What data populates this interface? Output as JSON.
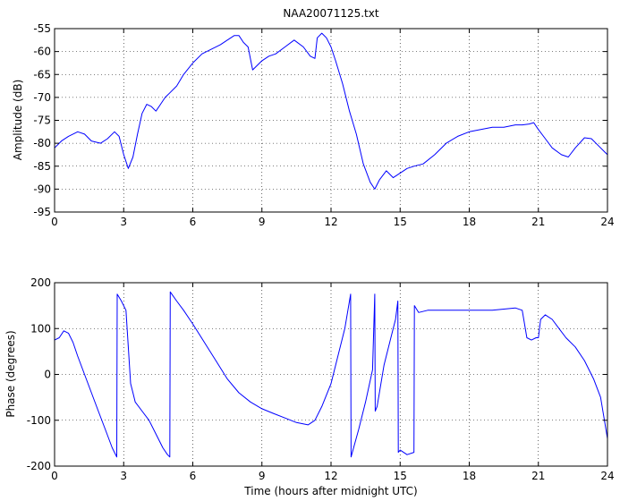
{
  "chart_data": [
    {
      "type": "line",
      "title": "NAA20071125.txt",
      "xlabel": "",
      "ylabel": "Amplitude (dB)",
      "xlim": [
        0,
        24
      ],
      "ylim": [
        -95,
        -55
      ],
      "xticks": [
        0,
        3,
        6,
        9,
        12,
        15,
        18,
        21,
        24
      ],
      "yticks": [
        -95,
        -90,
        -85,
        -80,
        -75,
        -70,
        -65,
        -60,
        -55
      ],
      "grid": "dotted",
      "color": "#0000ff",
      "series": [
        {
          "x": [
            0,
            0.3,
            0.6,
            1.0,
            1.3,
            1.6,
            2.0,
            2.3,
            2.6,
            2.8,
            3.0,
            3.2,
            3.4,
            3.6,
            3.8,
            4.0,
            4.2,
            4.4,
            4.6,
            4.8,
            5.0,
            5.3,
            5.6,
            6.0,
            6.4,
            6.8,
            7.2,
            7.5,
            7.8,
            8.0,
            8.2,
            8.4,
            8.6,
            8.8,
            9.0,
            9.3,
            9.6,
            10.0,
            10.4,
            10.8,
            11.1,
            11.3,
            11.4,
            11.6,
            11.8,
            12.0,
            12.2,
            12.5,
            12.8,
            13.1,
            13.4,
            13.7,
            13.9,
            14.1,
            14.4,
            14.7,
            15.0,
            15.3,
            15.6,
            16.0,
            16.5,
            17.0,
            17.5,
            18.0,
            18.5,
            19.0,
            19.5,
            20.0,
            20.3,
            20.6,
            20.8,
            21.0,
            21.3,
            21.6,
            22.0,
            22.3,
            22.6,
            23.0,
            23.3,
            23.6,
            23.9,
            24.0
          ],
          "y": [
            -81,
            -79.5,
            -78.5,
            -77.5,
            -78,
            -79.5,
            -80,
            -79,
            -77.5,
            -78.5,
            -82.5,
            -85.5,
            -83,
            -78,
            -73.5,
            -71.5,
            -72,
            -73,
            -71.5,
            -70,
            -69,
            -67.5,
            -65,
            -62.5,
            -60.5,
            -59.5,
            -58.5,
            -57.5,
            -56.5,
            -56.5,
            -58,
            -59,
            -64,
            -63,
            -62,
            -61,
            -60.5,
            -59,
            -57.5,
            -59,
            -61,
            -61.5,
            -57,
            -56,
            -57,
            -59,
            -62,
            -67,
            -73,
            -78,
            -84.5,
            -88.5,
            -90,
            -88,
            -86,
            -87.5,
            -86.5,
            -85.5,
            -85,
            -84.5,
            -82.5,
            -80,
            -78.5,
            -77.5,
            -77,
            -76.5,
            -76.5,
            -76,
            -76,
            -75.8,
            -75.5,
            -77,
            -79,
            -81,
            -82.5,
            -83,
            -81,
            -78.8,
            -79,
            -80.5,
            -82,
            -82.5
          ]
        }
      ]
    },
    {
      "type": "line",
      "title": "",
      "xlabel": "Time (hours after midnight UTC)",
      "ylabel": "Phase (degrees)",
      "xlim": [
        0,
        24
      ],
      "ylim": [
        -200,
        200
      ],
      "xticks": [
        0,
        3,
        6,
        9,
        12,
        15,
        18,
        21,
        24
      ],
      "yticks": [
        -200,
        -100,
        0,
        100,
        200
      ],
      "grid": "dotted",
      "color": "#0000ff",
      "series": [
        {
          "x": [
            0,
            0.2,
            0.4,
            0.6,
            0.8,
            1.0,
            1.3,
            1.6,
            1.9,
            2.2,
            2.5,
            2.7,
            2.72,
            2.9,
            3.1,
            3.2,
            3.3,
            3.4,
            3.5,
            3.8,
            4.1,
            4.4,
            4.7,
            4.9,
            5.0,
            5.02,
            5.3,
            5.6,
            6.0,
            6.5,
            7.0,
            7.5,
            8.0,
            8.5,
            9.0,
            9.5,
            10.0,
            10.5,
            11.0,
            11.3,
            11.6,
            12.0,
            12.3,
            12.6,
            12.85,
            12.87,
            13.2,
            13.5,
            13.8,
            13.9,
            13.92,
            14.0,
            14.3,
            14.6,
            14.8,
            14.9,
            14.92,
            15.0,
            15.3,
            15.6,
            15.62,
            15.8,
            16.2,
            17.0,
            18.0,
            19.0,
            20.0,
            20.3,
            20.5,
            20.7,
            20.9,
            21.0,
            21.1,
            21.3,
            21.6,
            21.9,
            22.2,
            22.6,
            23.0,
            23.4,
            23.7,
            24.0
          ],
          "y": [
            75,
            80,
            95,
            90,
            70,
            40,
            0,
            -40,
            -80,
            -120,
            -160,
            -180,
            175,
            160,
            140,
            60,
            -20,
            -40,
            -60,
            -80,
            -100,
            -130,
            -160,
            -175,
            -180,
            180,
            160,
            140,
            110,
            70,
            30,
            -10,
            -40,
            -60,
            -75,
            -85,
            -95,
            -105,
            -110,
            -100,
            -70,
            -20,
            40,
            100,
            175,
            -180,
            -120,
            -60,
            10,
            175,
            -80,
            -70,
            20,
            80,
            120,
            160,
            -170,
            -165,
            -175,
            -170,
            150,
            135,
            140,
            140,
            140,
            140,
            145,
            140,
            80,
            75,
            80,
            80,
            120,
            130,
            120,
            100,
            80,
            60,
            30,
            -10,
            -50,
            -140
          ]
        }
      ]
    }
  ]
}
